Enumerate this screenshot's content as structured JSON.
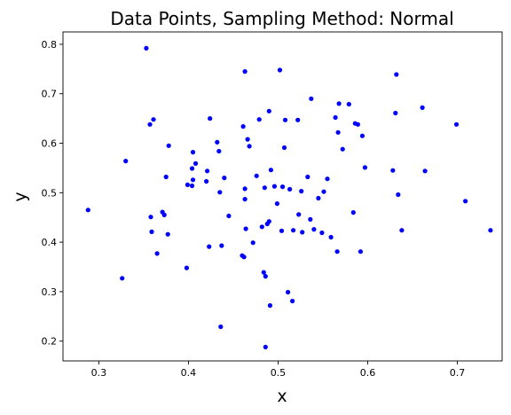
{
  "chart_data": {
    "type": "scatter",
    "title": "Data Points, Sampling Method: Normal",
    "xlabel": "x",
    "ylabel": "y",
    "xlim": [
      0.26,
      0.75
    ],
    "ylim": [
      0.16,
      0.825
    ],
    "xticks": [
      "0.3",
      "0.4",
      "0.5",
      "0.6",
      "0.7"
    ],
    "xtick_values": [
      0.3,
      0.4,
      0.5,
      0.6,
      0.7
    ],
    "yticks": [
      "0.2",
      "0.3",
      "0.4",
      "0.5",
      "0.6",
      "0.7",
      "0.8"
    ],
    "ytick_values": [
      0.2,
      0.3,
      0.4,
      0.5,
      0.6,
      0.7,
      0.8
    ],
    "grid": false,
    "marker_color": "#0000ff",
    "points": [
      [
        0.288,
        0.465
      ],
      [
        0.326,
        0.327
      ],
      [
        0.33,
        0.564
      ],
      [
        0.353,
        0.792
      ],
      [
        0.357,
        0.638
      ],
      [
        0.358,
        0.451
      ],
      [
        0.359,
        0.421
      ],
      [
        0.361,
        0.648
      ],
      [
        0.365,
        0.377
      ],
      [
        0.371,
        0.461
      ],
      [
        0.373,
        0.455
      ],
      [
        0.375,
        0.532
      ],
      [
        0.377,
        0.416
      ],
      [
        0.378,
        0.595
      ],
      [
        0.398,
        0.348
      ],
      [
        0.399,
        0.516
      ],
      [
        0.404,
        0.514
      ],
      [
        0.404,
        0.549
      ],
      [
        0.405,
        0.582
      ],
      [
        0.405,
        0.526
      ],
      [
        0.408,
        0.559
      ],
      [
        0.42,
        0.523
      ],
      [
        0.421,
        0.544
      ],
      [
        0.423,
        0.391
      ],
      [
        0.424,
        0.65
      ],
      [
        0.432,
        0.602
      ],
      [
        0.434,
        0.584
      ],
      [
        0.435,
        0.501
      ],
      [
        0.436,
        0.229
      ],
      [
        0.437,
        0.393
      ],
      [
        0.44,
        0.53
      ],
      [
        0.445,
        0.453
      ],
      [
        0.46,
        0.373
      ],
      [
        0.461,
        0.634
      ],
      [
        0.462,
        0.37
      ],
      [
        0.463,
        0.745
      ],
      [
        0.463,
        0.508
      ],
      [
        0.463,
        0.487
      ],
      [
        0.464,
        0.427
      ],
      [
        0.466,
        0.608
      ],
      [
        0.468,
        0.594
      ],
      [
        0.472,
        0.399
      ],
      [
        0.476,
        0.534
      ],
      [
        0.479,
        0.648
      ],
      [
        0.482,
        0.431
      ],
      [
        0.484,
        0.339
      ],
      [
        0.485,
        0.51
      ],
      [
        0.486,
        0.188
      ],
      [
        0.486,
        0.331
      ],
      [
        0.488,
        0.437
      ],
      [
        0.49,
        0.442
      ],
      [
        0.49,
        0.665
      ],
      [
        0.491,
        0.272
      ],
      [
        0.492,
        0.546
      ],
      [
        0.496,
        0.513
      ],
      [
        0.499,
        0.478
      ],
      [
        0.502,
        0.748
      ],
      [
        0.504,
        0.423
      ],
      [
        0.505,
        0.512
      ],
      [
        0.507,
        0.591
      ],
      [
        0.508,
        0.647
      ],
      [
        0.511,
        0.299
      ],
      [
        0.513,
        0.507
      ],
      [
        0.516,
        0.281
      ],
      [
        0.517,
        0.424
      ],
      [
        0.522,
        0.647
      ],
      [
        0.523,
        0.456
      ],
      [
        0.526,
        0.503
      ],
      [
        0.527,
        0.42
      ],
      [
        0.533,
        0.532
      ],
      [
        0.536,
        0.446
      ],
      [
        0.537,
        0.69
      ],
      [
        0.54,
        0.426
      ],
      [
        0.545,
        0.489
      ],
      [
        0.549,
        0.419
      ],
      [
        0.551,
        0.502
      ],
      [
        0.555,
        0.528
      ],
      [
        0.559,
        0.41
      ],
      [
        0.564,
        0.652
      ],
      [
        0.566,
        0.381
      ],
      [
        0.567,
        0.622
      ],
      [
        0.568,
        0.68
      ],
      [
        0.572,
        0.588
      ],
      [
        0.579,
        0.679
      ],
      [
        0.584,
        0.46
      ],
      [
        0.586,
        0.64
      ],
      [
        0.589,
        0.638
      ],
      [
        0.592,
        0.381
      ],
      [
        0.594,
        0.615
      ],
      [
        0.597,
        0.551
      ],
      [
        0.628,
        0.545
      ],
      [
        0.631,
        0.661
      ],
      [
        0.632,
        0.739
      ],
      [
        0.634,
        0.496
      ],
      [
        0.638,
        0.424
      ],
      [
        0.661,
        0.672
      ],
      [
        0.664,
        0.544
      ],
      [
        0.699,
        0.638
      ],
      [
        0.709,
        0.483
      ],
      [
        0.737,
        0.424
      ]
    ]
  }
}
